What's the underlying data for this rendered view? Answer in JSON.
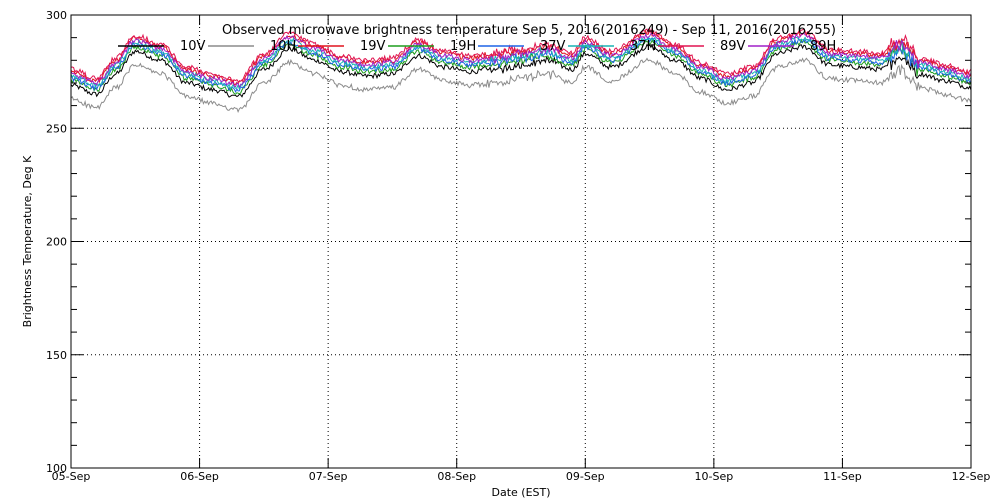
{
  "chart_data": {
    "type": "line",
    "title": "Observed microwave brightness temperature Sep  5, 2016(2016249) - Sep 11, 2016(2016255)",
    "xlabel": "Date (EST)",
    "ylabel": "Brightness Temperature, Deg K",
    "ylim": [
      100,
      300
    ],
    "xlim": [
      0,
      7
    ],
    "y_ticks": [
      100,
      150,
      200,
      250,
      300
    ],
    "x_tick_labels": [
      "05-Sep",
      "06-Sep",
      "07-Sep",
      "08-Sep",
      "09-Sep",
      "10-Sep",
      "11-Sep",
      "12-Sep"
    ],
    "grid": true,
    "legend_position": "top",
    "series": [
      {
        "name": "10V",
        "color": "#000000",
        "offset": 0
      },
      {
        "name": "10H",
        "color": "#8c8c8c",
        "offset": -6
      },
      {
        "name": "19V",
        "color": "#e0141e",
        "offset": 6
      },
      {
        "name": "19H",
        "color": "#1e9e1e",
        "offset": 2
      },
      {
        "name": "37V",
        "color": "#1e64e6",
        "offset": 3
      },
      {
        "name": "37H",
        "color": "#18b4b4",
        "offset": 4
      },
      {
        "name": "89V",
        "color": "#e01450",
        "offset": 7
      },
      {
        "name": "89H",
        "color": "#a020c8",
        "offset": 5
      }
    ],
    "base_curve": {
      "x_days": [
        0,
        0.2,
        0.35,
        0.5,
        0.7,
        0.9,
        1.1,
        1.3,
        1.5,
        1.7,
        1.9,
        2.1,
        2.3,
        2.5,
        2.7,
        2.9,
        3.1,
        3.3,
        3.5,
        3.7,
        3.9,
        4.0,
        4.2,
        4.5,
        4.7,
        4.9,
        5.1,
        5.3,
        5.5,
        5.7,
        5.9,
        6.1,
        6.3,
        6.45,
        6.6,
        6.8,
        7.0
      ],
      "values": [
        269,
        265,
        274,
        284,
        280,
        270,
        267,
        264,
        276,
        285,
        280,
        275,
        273,
        274,
        282,
        277,
        275,
        276,
        278,
        280,
        276,
        283,
        277,
        286,
        280,
        272,
        267,
        270,
        283,
        286,
        278,
        277,
        276,
        282,
        274,
        271,
        268
      ]
    }
  }
}
